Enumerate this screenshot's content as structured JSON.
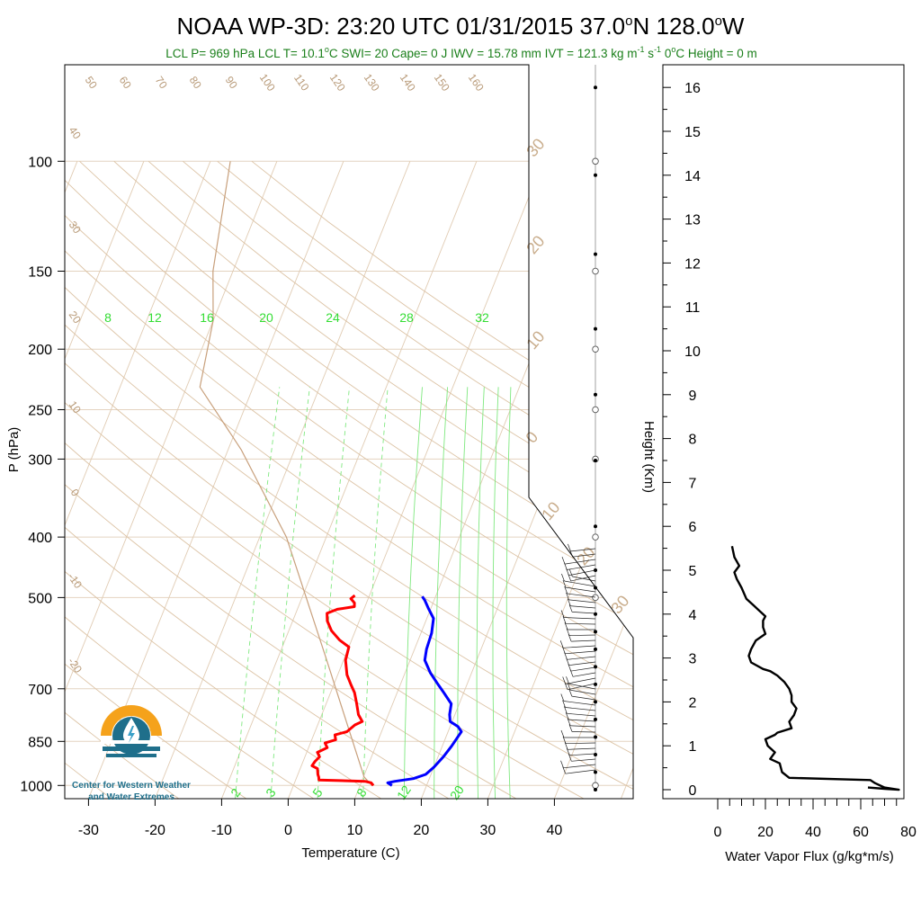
{
  "header": {
    "title_parts": [
      "NOAA WP-3D: 23:20 UTC 01/31/2015  37.0",
      "o",
      "N 128.0",
      "o",
      "W"
    ],
    "stats_parts": [
      "LCL P= 969 hPa  LCL T= 10.1",
      "o",
      "C  SWI= 20  Cape= 0 J  IWV = 15.78 mm  IVT = 121.3 kg m",
      "-1",
      " s",
      "-1",
      "   0",
      "o",
      "C Height = 0 m"
    ]
  },
  "logo": {
    "line1": "Center for Western Weather",
    "line2": "and Water Extremes",
    "colors": {
      "sun": "#f5a21b",
      "wave": "#1f6f8b",
      "drop": "#3aa0c8"
    }
  },
  "chart_data": [
    {
      "type": "line",
      "subtype": "skew-t log-p",
      "xlabel": "Temperature (C)",
      "ylabel": "P (hPa)",
      "xlim": [
        -34,
        52
      ],
      "ylim": [
        1050,
        100
      ],
      "y_log": true,
      "grid": true,
      "x_ticks": [
        -30,
        -20,
        -10,
        0,
        10,
        20,
        30,
        40
      ],
      "y_ticks": [
        100,
        150,
        200,
        250,
        300,
        400,
        500,
        700,
        850,
        1000
      ],
      "mixing_ratio_labels": [
        "8",
        "12",
        "16",
        "20",
        "24",
        "28",
        "32"
      ],
      "mixing_ratio_labels_bottom": [
        "2",
        "3",
        "5",
        "8",
        "12",
        "20"
      ],
      "isotherm_labels_left": [
        "50",
        "60",
        "70",
        "80",
        "90",
        "100",
        "110",
        "120",
        "130",
        "140",
        "150",
        "160"
      ],
      "adiabat_labels_left": [
        "40",
        "30",
        "20",
        "10",
        "0",
        "-10",
        "-20"
      ],
      "adiabat_labels_right": [
        "30",
        "20",
        "10",
        "0",
        "10",
        "20",
        "30"
      ],
      "series": [
        {
          "role": "temperature",
          "color": "#ff0000",
          "points": [
            [
              12.0,
              1000
            ],
            [
              11.5,
              990
            ],
            [
              10.5,
              985
            ],
            [
              3.5,
              980
            ],
            [
              3.3,
              970
            ],
            [
              3.0,
              960
            ],
            [
              2.6,
              940
            ],
            [
              1.6,
              930
            ],
            [
              1.8,
              915
            ],
            [
              2.2,
              900
            ],
            [
              1.6,
              885
            ],
            [
              2.8,
              870
            ],
            [
              2.2,
              855
            ],
            [
              3.6,
              845
            ],
            [
              3.2,
              830
            ],
            [
              4.8,
              820
            ],
            [
              5.6,
              800
            ],
            [
              6.5,
              790
            ],
            [
              5.5,
              770
            ],
            [
              4.6,
              740
            ],
            [
              3.6,
              710
            ],
            [
              2.6,
              690
            ],
            [
              1.4,
              665
            ],
            [
              0.3,
              630
            ],
            [
              0.0,
              600
            ],
            [
              -1.8,
              585
            ],
            [
              -3.6,
              565
            ],
            [
              -4.8,
              545
            ],
            [
              -5.3,
              530
            ],
            [
              -4.0,
              522
            ],
            [
              -1.6,
              517
            ],
            [
              -1.8,
              510
            ],
            [
              -2.6,
              502
            ],
            [
              -2.2,
              496
            ]
          ]
        },
        {
          "role": "dewpoint",
          "color": "#0000ff",
          "points": [
            [
              14.8,
              1000
            ],
            [
              14.0,
              990
            ],
            [
              15.0,
              985
            ],
            [
              17.6,
              975
            ],
            [
              19.2,
              960
            ],
            [
              20.0,
              935
            ],
            [
              20.8,
              900
            ],
            [
              21.4,
              865
            ],
            [
              21.8,
              835
            ],
            [
              22.0,
              820
            ],
            [
              21.2,
              805
            ],
            [
              19.7,
              790
            ],
            [
              19.2,
              770
            ],
            [
              18.8,
              740
            ],
            [
              17.0,
              710
            ],
            [
              15.4,
              685
            ],
            [
              13.8,
              660
            ],
            [
              12.2,
              630
            ],
            [
              11.8,
              605
            ],
            [
              11.6,
              570
            ],
            [
              11.0,
              540
            ],
            [
              9.6,
              520
            ],
            [
              8.6,
              505
            ],
            [
              8.0,
              498
            ]
          ]
        },
        {
          "role": "lifted parcel",
          "color": "#c8a07c",
          "points": [
            [
              11.8,
              1000
            ],
            [
              10.1,
              969
            ],
            [
              -3,
              620
            ],
            [
              -16,
              400
            ],
            [
              -28,
              290
            ],
            [
              -38,
              230
            ],
            [
              -40,
              180
            ],
            [
              -43,
              150
            ],
            [
              -47,
              100
            ]
          ]
        }
      ]
    },
    {
      "type": "line",
      "xlabel": "Water Vapor Flux (g/kg*m/s)",
      "ylabel": "Height (Km)",
      "xlim": [
        0,
        80
      ],
      "ylim": [
        0,
        16.4
      ],
      "x_ticks": [
        0,
        20,
        40,
        60,
        80
      ],
      "y_ticks": [
        0,
        1,
        2,
        3,
        4,
        5,
        6,
        7,
        8,
        9,
        10,
        11,
        12,
        13,
        14,
        15,
        16
      ],
      "series": [
        {
          "color": "#000000",
          "points": [
            [
              63,
              0.05
            ],
            [
              70,
              0.02
            ],
            [
              76,
              0.0
            ],
            [
              70,
              0.05
            ],
            [
              66,
              0.15
            ],
            [
              64,
              0.22
            ],
            [
              30,
              0.27
            ],
            [
              27,
              0.4
            ],
            [
              26,
              0.6
            ],
            [
              22,
              0.7
            ],
            [
              24,
              0.85
            ],
            [
              21,
              1.0
            ],
            [
              20,
              1.15
            ],
            [
              24,
              1.25
            ],
            [
              25,
              1.3
            ],
            [
              31,
              1.4
            ],
            [
              30,
              1.55
            ],
            [
              32,
              1.7
            ],
            [
              33,
              1.85
            ],
            [
              31,
              2.0
            ],
            [
              31,
              2.15
            ],
            [
              30,
              2.3
            ],
            [
              28,
              2.45
            ],
            [
              25,
              2.6
            ],
            [
              22,
              2.7
            ],
            [
              19,
              2.75
            ],
            [
              14,
              2.9
            ],
            [
              13,
              3.05
            ],
            [
              14,
              3.2
            ],
            [
              16,
              3.4
            ],
            [
              20,
              3.55
            ],
            [
              19,
              3.7
            ],
            [
              19,
              3.85
            ],
            [
              20,
              3.95
            ],
            [
              17,
              4.1
            ],
            [
              15,
              4.2
            ],
            [
              12,
              4.35
            ],
            [
              10,
              4.6
            ],
            [
              8,
              4.8
            ],
            [
              7,
              4.95
            ],
            [
              9,
              5.1
            ],
            [
              7,
              5.3
            ],
            [
              6,
              5.55
            ]
          ]
        }
      ]
    },
    {
      "type": "scatter",
      "role": "wind barb staff levels",
      "marker_levels_km": [
        0,
        0.4,
        0.8,
        1.2,
        1.6,
        2.0,
        2.4,
        2.8,
        3.2,
        3.6,
        4.0,
        4.6,
        5.0,
        6.0,
        7.5,
        9.0,
        10.5,
        12.2,
        14.0,
        16.0
      ],
      "hollow_pressures_hpa": [
        1000,
        500,
        400,
        300,
        250,
        200,
        150,
        100
      ]
    }
  ]
}
